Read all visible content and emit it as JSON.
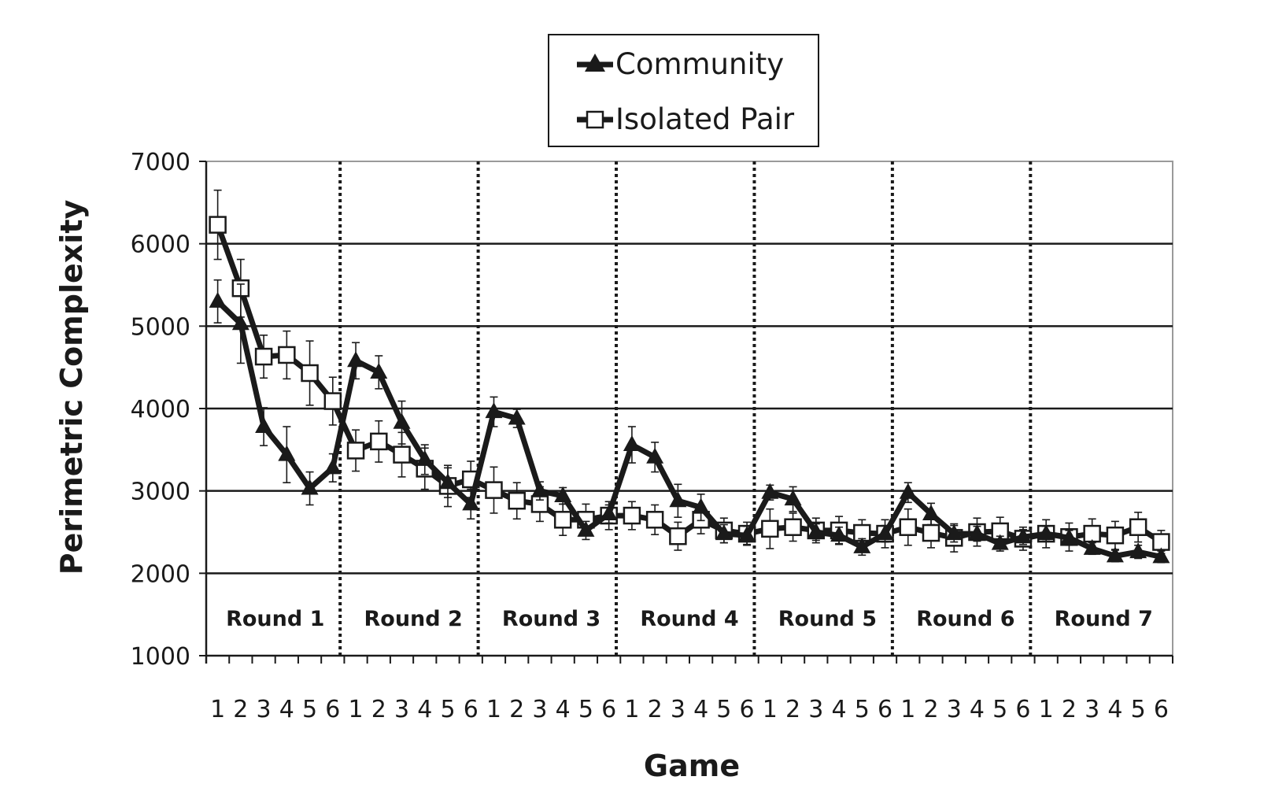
{
  "chart_data": {
    "type": "line",
    "xlabel": "Game",
    "ylabel": "Perimetric Complexity",
    "ylim": [
      1000,
      7000
    ],
    "yticks": [
      "1000",
      "2000",
      "3000",
      "4000",
      "5000",
      "6000",
      "7000"
    ],
    "grid": true,
    "legend_position": "top-center",
    "rounds": [
      "Round 1",
      "Round 2",
      "Round 3",
      "Round 4",
      "Round 5",
      "Round 6",
      "Round 7"
    ],
    "games_per_round": [
      "1",
      "2",
      "3",
      "4",
      "5",
      "6"
    ],
    "series": [
      {
        "name": "Community",
        "marker": "filled-triangle",
        "color": "#1a1a1a",
        "values": [
          5300,
          5030,
          3780,
          3440,
          3030,
          3280,
          4580,
          4440,
          3830,
          3380,
          3100,
          2840,
          3960,
          3880,
          3000,
          2940,
          2520,
          2720,
          3560,
          3410,
          2880,
          2800,
          2480,
          2460,
          2980,
          2900,
          2500,
          2460,
          2320,
          2480,
          2980,
          2720,
          2480,
          2480,
          2360,
          2440,
          2480,
          2430,
          2300,
          2210,
          2260,
          2200
        ],
        "errors": [
          260,
          480,
          230,
          340,
          200,
          170,
          220,
          200,
          260,
          180,
          180,
          180,
          180,
          110,
          110,
          100,
          110,
          110,
          220,
          180,
          200,
          160,
          110,
          110,
          90,
          150,
          100,
          100,
          100,
          100,
          120,
          130,
          100,
          90,
          90,
          90,
          90,
          90,
          70,
          70,
          80,
          70
        ]
      },
      {
        "name": "Isolated Pair",
        "marker": "open-square",
        "color": "#ffffff",
        "values": [
          6230,
          5460,
          4630,
          4650,
          4430,
          4090,
          3490,
          3600,
          3440,
          3270,
          3060,
          3140,
          3010,
          2880,
          2840,
          2650,
          2650,
          2700,
          2700,
          2650,
          2450,
          2650,
          2520,
          2480,
          2540,
          2560,
          2520,
          2520,
          2490,
          2480,
          2560,
          2490,
          2430,
          2500,
          2510,
          2420,
          2480,
          2440,
          2480,
          2460,
          2560,
          2380
        ],
        "errors": [
          420,
          350,
          260,
          290,
          390,
          290,
          250,
          250,
          270,
          250,
          250,
          220,
          280,
          220,
          210,
          190,
          190,
          170,
          170,
          180,
          170,
          170,
          150,
          140,
          240,
          170,
          150,
          170,
          160,
          170,
          220,
          180,
          170,
          170,
          170,
          140,
          170,
          170,
          180,
          170,
          180,
          140
        ]
      }
    ]
  }
}
